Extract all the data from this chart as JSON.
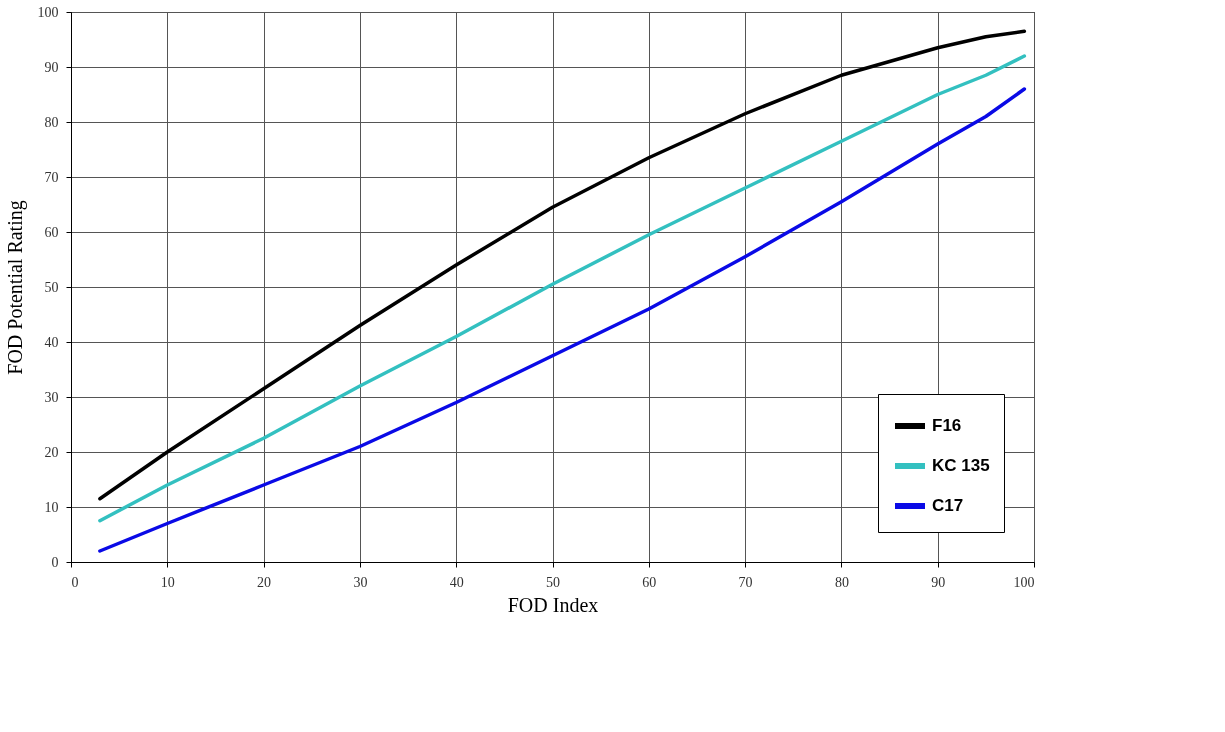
{
  "chart_data": {
    "type": "line",
    "xlabel": "FOD Index",
    "ylabel": "FOD Potential Rating",
    "xlim": [
      0,
      100
    ],
    "ylim": [
      0,
      100
    ],
    "xticks": [
      0,
      10,
      20,
      30,
      40,
      50,
      60,
      70,
      80,
      90,
      100
    ],
    "yticks": [
      0,
      10,
      20,
      30,
      40,
      50,
      60,
      70,
      80,
      90,
      100
    ],
    "grid": true,
    "legend": "bottom right",
    "line_style": "solid",
    "marker": "none",
    "x": [
      3,
      10,
      20,
      30,
      40,
      50,
      60,
      70,
      80,
      90,
      95,
      99
    ],
    "series": [
      {
        "name": "F16",
        "color": "#000000",
        "values": [
          11.5,
          20,
          31.5,
          43,
          54,
          64.5,
          73.5,
          81.5,
          88.5,
          93.5,
          95.5,
          96.5
        ]
      },
      {
        "name": "KC 135",
        "color": "#33c0c0",
        "values": [
          7.5,
          14,
          22.5,
          32,
          41,
          50.5,
          59.5,
          68,
          76.5,
          85,
          88.5,
          92
        ]
      },
      {
        "name": "C17",
        "color": "#0a0ae6",
        "values": [
          2,
          7,
          14,
          21,
          29,
          37.5,
          46,
          55.5,
          65.5,
          76,
          81,
          86
        ]
      }
    ]
  }
}
